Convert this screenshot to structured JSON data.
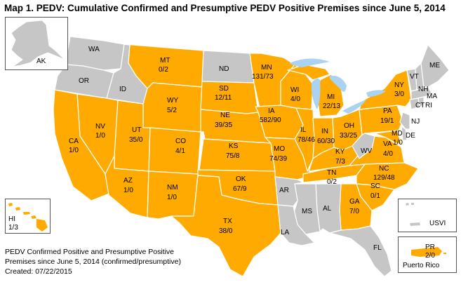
{
  "title": "Map 1.  PEDV:  Cumulative Confirmed and Presumptive PEDV Positive Premises since June 5, 2014",
  "colors": {
    "positive": "#ffaa00",
    "none": "#c6c6c6",
    "water": "#a9d3f0",
    "border": "#ffffff"
  },
  "states": {
    "WA": {
      "abbr": "WA"
    },
    "OR": {
      "abbr": "OR"
    },
    "ID": {
      "abbr": "ID"
    },
    "MT": {
      "abbr": "MT",
      "value": "0/2"
    },
    "ND": {
      "abbr": "ND"
    },
    "MN": {
      "abbr": "MN",
      "value": "131/73"
    },
    "WY": {
      "abbr": "WY",
      "value": "5/2"
    },
    "SD": {
      "abbr": "SD",
      "value": "12/11"
    },
    "WI": {
      "abbr": "WI",
      "value": "4/0"
    },
    "MI": {
      "abbr": "MI",
      "value": "22/13"
    },
    "NY": {
      "abbr": "NY",
      "value": "3/0"
    },
    "VT": {
      "abbr": "VT"
    },
    "NH": {
      "abbr": "NH"
    },
    "ME": {
      "abbr": "ME"
    },
    "MA": {
      "abbr": "MA"
    },
    "CT": {
      "abbr": "CT"
    },
    "RI": {
      "abbr": "RI"
    },
    "NV": {
      "abbr": "NV",
      "value": "1/0"
    },
    "UT": {
      "abbr": "UT",
      "value": "35/0"
    },
    "CO": {
      "abbr": "CO",
      "value": "4/1"
    },
    "NE": {
      "abbr": "NE",
      "value": "39/35"
    },
    "IA": {
      "abbr": "IA",
      "value": "582/90"
    },
    "IL": {
      "abbr": "IL",
      "value": "78/46"
    },
    "IN": {
      "abbr": "IN",
      "value": "60/30"
    },
    "OH": {
      "abbr": "OH",
      "value": "33/25"
    },
    "PA": {
      "abbr": "PA",
      "value": "19/1"
    },
    "NJ": {
      "abbr": "NJ"
    },
    "DE": {
      "abbr": "DE"
    },
    "MD": {
      "abbr": "MD",
      "value": "1/0"
    },
    "CA": {
      "abbr": "CA",
      "value": "1/0"
    },
    "KS": {
      "abbr": "KS",
      "value": "75/8"
    },
    "MO": {
      "abbr": "MO",
      "value": "74/39"
    },
    "KY": {
      "abbr": "KY",
      "value": "7/3"
    },
    "WV": {
      "abbr": "WV"
    },
    "VA": {
      "abbr": "VA",
      "value": "4/0"
    },
    "AZ": {
      "abbr": "AZ",
      "value": "1/0"
    },
    "NM": {
      "abbr": "NM",
      "value": "1/0"
    },
    "OK": {
      "abbr": "OK",
      "value": "67/9"
    },
    "AR": {
      "abbr": "AR"
    },
    "TN": {
      "abbr": "TN",
      "value": "0/2"
    },
    "NC": {
      "abbr": "NC",
      "value": "129/48"
    },
    "SC": {
      "abbr": "SC",
      "value": "0/1"
    },
    "TX": {
      "abbr": "TX",
      "value": "38/0"
    },
    "LA": {
      "abbr": "LA"
    },
    "MS": {
      "abbr": "MS"
    },
    "AL": {
      "abbr": "AL"
    },
    "GA": {
      "abbr": "GA",
      "value": "7/0"
    },
    "FL": {
      "abbr": "FL"
    },
    "AK": {
      "abbr": "AK"
    },
    "HI": {
      "abbr": "HI",
      "value": "1/3"
    },
    "PR": {
      "abbr": "PR",
      "value": "2/0",
      "name": "Puerto Rico"
    },
    "USVI": {
      "abbr": "USVI"
    }
  },
  "footnote": {
    "line1": "PEDV Confirmed Positive and Presumptive Positive",
    "line2": "Premises since June 5, 2014 (confirmed/presumptive)",
    "line3": "Created: 07/22/2015"
  }
}
